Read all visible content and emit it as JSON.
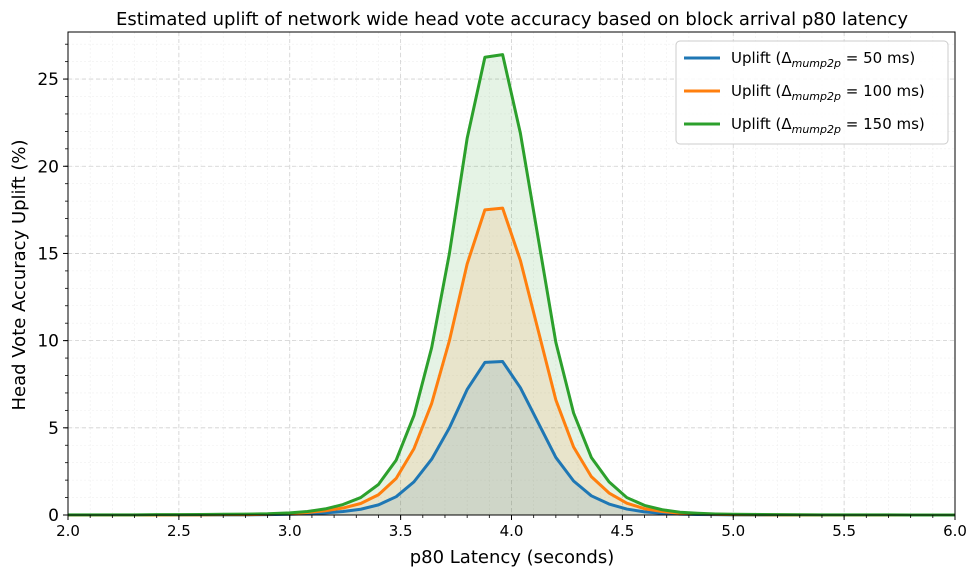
{
  "chart_data": {
    "type": "area",
    "title": "Estimated uplift of network wide head vote accuracy based on block arrival p80 latency",
    "xlabel": "p80 Latency (seconds)",
    "ylabel": "Head Vote Accuracy Uplift (%)",
    "xlim": [
      2.0,
      6.0
    ],
    "ylim": [
      0,
      27.7
    ],
    "x_ticks": [
      "2.0",
      "2.5",
      "3.0",
      "3.5",
      "4.0",
      "4.5",
      "5.0",
      "5.5",
      "6.0"
    ],
    "y_ticks": [
      "0",
      "5",
      "10",
      "15",
      "20",
      "25"
    ],
    "grid": true,
    "legend_position": "top-right",
    "x": [
      2.0,
      2.1,
      2.2,
      2.3,
      2.4,
      2.5,
      2.6,
      2.7,
      2.8,
      2.9,
      3.0,
      3.08,
      3.16,
      3.24,
      3.32,
      3.4,
      3.48,
      3.56,
      3.64,
      3.72,
      3.8,
      3.88,
      3.96,
      4.04,
      4.12,
      4.2,
      4.28,
      4.36,
      4.44,
      4.52,
      4.6,
      4.68,
      4.76,
      4.84,
      4.92,
      5.0,
      5.2,
      5.4,
      5.6,
      5.8,
      6.0
    ],
    "series": [
      {
        "name": "Uplift (Δ",
        "name_sub": "mump2p",
        "name_rest": " = 50 ms)",
        "color": "#1f77b4",
        "fill": "#1f77b4",
        "values": [
          0,
          0,
          0,
          0,
          0,
          0,
          0,
          0.01,
          0.01,
          0.02,
          0.04,
          0.07,
          0.12,
          0.2,
          0.33,
          0.58,
          1.05,
          1.9,
          3.2,
          5.0,
          7.2,
          8.75,
          8.8,
          7.3,
          5.3,
          3.3,
          1.95,
          1.1,
          0.63,
          0.34,
          0.18,
          0.1,
          0.05,
          0.03,
          0.02,
          0.01,
          0,
          0,
          0,
          0,
          0
        ]
      },
      {
        "name": "Uplift (Δ",
        "name_sub": "mump2p",
        "name_rest": " = 100 ms)",
        "color": "#ff7f0e",
        "fill": "#ff7f0e",
        "values": [
          0,
          0,
          0,
          0,
          0,
          0.01,
          0.01,
          0.02,
          0.02,
          0.04,
          0.08,
          0.14,
          0.24,
          0.4,
          0.66,
          1.16,
          2.1,
          3.8,
          6.4,
          10.0,
          14.4,
          17.5,
          17.6,
          14.6,
          10.6,
          6.6,
          3.9,
          2.2,
          1.26,
          0.68,
          0.36,
          0.2,
          0.1,
          0.06,
          0.04,
          0.02,
          0.01,
          0,
          0,
          0,
          0
        ]
      },
      {
        "name": "Uplift (Δ",
        "name_sub": "mump2p",
        "name_rest": " = 150 ms)",
        "color": "#2ca02c",
        "fill": "#2ca02c",
        "values": [
          0.01,
          0.01,
          0.01,
          0.01,
          0.02,
          0.02,
          0.03,
          0.04,
          0.05,
          0.07,
          0.12,
          0.2,
          0.35,
          0.6,
          1.0,
          1.75,
          3.15,
          5.7,
          9.6,
          15.0,
          21.6,
          26.25,
          26.4,
          21.9,
          15.9,
          9.9,
          5.85,
          3.3,
          1.9,
          1.0,
          0.55,
          0.3,
          0.16,
          0.1,
          0.06,
          0.04,
          0.02,
          0.01,
          0.01,
          0,
          0
        ]
      }
    ]
  }
}
